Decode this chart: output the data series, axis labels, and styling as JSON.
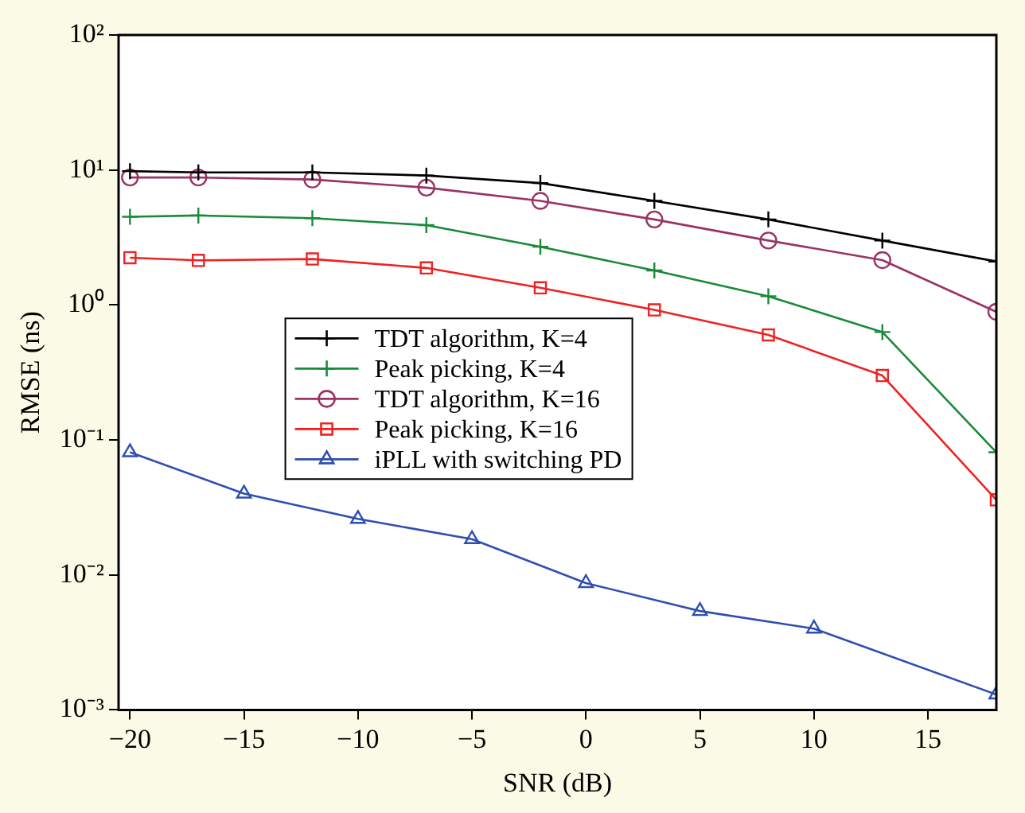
{
  "chart_data": {
    "type": "line",
    "xlabel": "SNR (dB)",
    "ylabel": "RMSE (ns)",
    "log": "y",
    "grid": false,
    "legend": "center",
    "line_style": "solid",
    "xlim": [
      -20.5,
      18
    ],
    "xticks": [
      -20,
      -15,
      -10,
      -5,
      0,
      5,
      10,
      15
    ],
    "ylim": [
      0.001,
      100
    ],
    "yticks": [
      {
        "value": 0.001,
        "label": "10⁻³"
      },
      {
        "value": 0.01,
        "label": "10⁻²"
      },
      {
        "value": 0.1,
        "label": "10⁻¹"
      },
      {
        "value": 1,
        "label": "10⁰"
      },
      {
        "value": 10,
        "label": "10¹"
      },
      {
        "value": 100,
        "label": "10²"
      }
    ],
    "series": [
      {
        "name": "TDT algorithm, K=4",
        "color": "#000000",
        "marker": "cross",
        "x": [
          -20,
          -17,
          -12,
          -7,
          -2,
          3,
          8,
          13,
          18
        ],
        "values": [
          9.8,
          9.6,
          9.6,
          9.1,
          8.0,
          5.9,
          4.3,
          3.0,
          2.1
        ]
      },
      {
        "name": "Peak picking, K=4",
        "color": "#1a8a3a",
        "marker": "cross",
        "x": [
          -20,
          -17,
          -12,
          -7,
          -2,
          3,
          8,
          13,
          18
        ],
        "values": [
          4.5,
          4.6,
          4.4,
          3.9,
          2.7,
          1.8,
          1.16,
          0.63,
          0.081
        ]
      },
      {
        "name": "TDT algorithm, K=16",
        "color": "#993366",
        "marker": "circle",
        "x": [
          -20,
          -17,
          -12,
          -7,
          -2,
          3,
          8,
          13,
          18
        ],
        "values": [
          8.8,
          8.8,
          8.5,
          7.4,
          5.9,
          4.3,
          3.0,
          2.15,
          0.89
        ]
      },
      {
        "name": "Peak picking, K=16",
        "color": "#ee2222",
        "marker": "square",
        "x": [
          -20,
          -17,
          -12,
          -7,
          -2,
          3,
          8,
          13,
          18
        ],
        "values": [
          2.24,
          2.14,
          2.19,
          1.88,
          1.34,
          0.92,
          0.6,
          0.3,
          0.036
        ]
      },
      {
        "name": "iPLL with switching PD",
        "color": "#2f4fb0",
        "marker": "triangle",
        "x": [
          -20,
          -15,
          -10,
          -5,
          0,
          5,
          10,
          18
        ],
        "values": [
          0.081,
          0.04,
          0.026,
          0.0184,
          0.0087,
          0.0054,
          0.004,
          0.0013
        ]
      }
    ]
  }
}
